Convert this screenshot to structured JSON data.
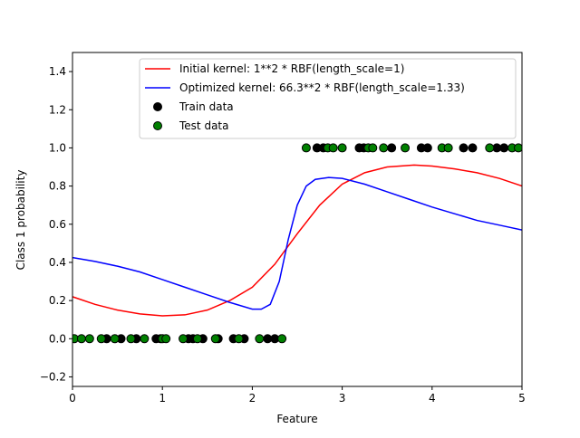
{
  "chart_data": {
    "type": "line",
    "xlabel": "Feature",
    "ylabel": "Class 1 probability",
    "xlim": [
      0,
      5
    ],
    "ylim": [
      -0.25,
      1.5
    ],
    "xticks": [
      0,
      1,
      2,
      3,
      4,
      5
    ],
    "yticks": [
      -0.2,
      0.0,
      0.2,
      0.4,
      0.6,
      0.8,
      1.0,
      1.2,
      1.4
    ],
    "xtick_labels": [
      "0",
      "1",
      "2",
      "3",
      "4",
      "5"
    ],
    "ytick_labels": [
      "−0.2",
      "0.0",
      "0.2",
      "0.4",
      "0.6",
      "0.8",
      "1.0",
      "1.2",
      "1.4"
    ],
    "legend_placement": "top-right",
    "series": [
      {
        "name": "Initial kernel: 1**2 * RBF(length_scale=1)",
        "kind": "line",
        "color": "#ff0000",
        "x": [
          0,
          0.25,
          0.5,
          0.75,
          1.0,
          1.25,
          1.5,
          1.75,
          2.0,
          2.25,
          2.5,
          2.75,
          3.0,
          3.25,
          3.5,
          3.8,
          4.0,
          4.25,
          4.5,
          4.75,
          5.0
        ],
        "y": [
          0.22,
          0.18,
          0.15,
          0.13,
          0.12,
          0.125,
          0.15,
          0.2,
          0.27,
          0.39,
          0.55,
          0.7,
          0.81,
          0.87,
          0.9,
          0.91,
          0.905,
          0.89,
          0.87,
          0.84,
          0.8
        ]
      },
      {
        "name": "Optimized kernel: 66.3**2 * RBF(length_scale=1.33)",
        "kind": "line",
        "color": "#0000ff",
        "x": [
          0,
          0.25,
          0.5,
          0.75,
          1.0,
          1.25,
          1.5,
          1.75,
          2.0,
          2.1,
          2.2,
          2.3,
          2.4,
          2.5,
          2.6,
          2.7,
          2.85,
          3.0,
          3.25,
          3.5,
          3.75,
          4.0,
          4.25,
          4.5,
          4.75,
          5.0
        ],
        "y": [
          0.425,
          0.405,
          0.38,
          0.35,
          0.31,
          0.27,
          0.23,
          0.19,
          0.155,
          0.155,
          0.18,
          0.3,
          0.52,
          0.7,
          0.8,
          0.835,
          0.845,
          0.84,
          0.81,
          0.77,
          0.73,
          0.69,
          0.655,
          0.62,
          0.595,
          0.57
        ]
      },
      {
        "name": "Train data",
        "kind": "scatter",
        "color": "#000000",
        "x": [
          0.38,
          0.54,
          0.71,
          0.93,
          0.98,
          1.29,
          1.34,
          1.45,
          1.62,
          1.79,
          1.91,
          2.17,
          2.25,
          2.72,
          2.79,
          3.19,
          3.24,
          3.55,
          3.88,
          3.95,
          4.35,
          4.45,
          4.72,
          4.8
        ],
        "y": [
          0,
          0,
          0,
          0,
          0,
          0,
          0,
          0,
          0,
          0,
          0,
          0,
          0,
          1,
          1,
          1,
          1,
          1,
          1,
          1,
          1,
          1,
          1,
          1
        ]
      },
      {
        "name": "Test data",
        "kind": "scatter",
        "color": "#008000",
        "x": [
          0.02,
          0.1,
          0.19,
          0.32,
          0.47,
          0.65,
          0.8,
          1.0,
          1.04,
          1.23,
          1.39,
          1.59,
          1.85,
          2.08,
          2.33,
          2.6,
          2.84,
          2.9,
          3.0,
          3.29,
          3.34,
          3.46,
          3.7,
          4.11,
          4.18,
          4.64,
          4.89,
          4.96
        ],
        "y": [
          0,
          0,
          0,
          0,
          0,
          0,
          0,
          0,
          0,
          0,
          0,
          0,
          0,
          0,
          0,
          1,
          1,
          1,
          1,
          1,
          1,
          1,
          1,
          1,
          1,
          1,
          1,
          1
        ]
      }
    ]
  }
}
